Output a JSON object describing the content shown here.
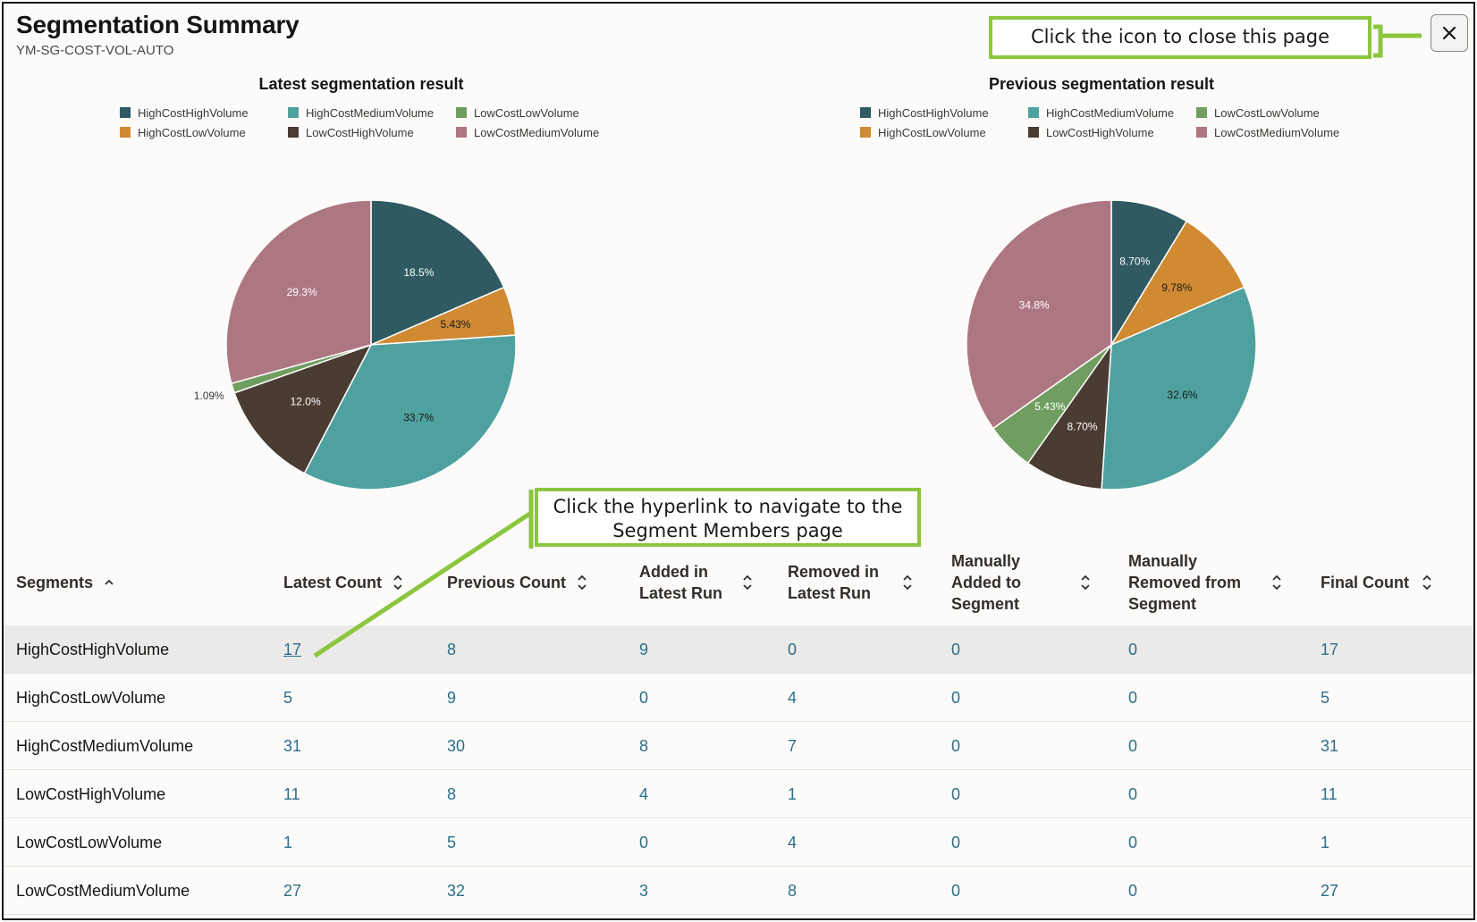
{
  "header": {
    "title": "Segmentation Summary",
    "subtitle": "YM-SG-COST-VOL-AUTO",
    "close_label": "close-icon"
  },
  "callouts": {
    "close": "Click the icon to close this page",
    "link_line1": "Click the hyperlink to navigate to the",
    "link_line2": "Segment Members page"
  },
  "colors": {
    "HighCostHighVolume": "#2f5a62",
    "HighCostLowVolume": "#d08a32",
    "HighCostMediumVolume": "#4fa19f",
    "LowCostHighVolume": "#4a3c33",
    "LowCostLowVolume": "#6f9e60",
    "LowCostMediumVolume": "#ad7782",
    "link": "#2c6e8a",
    "callout": "#8cc63f"
  },
  "legend": [
    "HighCostHighVolume",
    "HighCostMediumVolume",
    "LowCostLowVolume",
    "HighCostLowVolume",
    "LowCostHighVolume",
    "LowCostMediumVolume"
  ],
  "chart_data": [
    {
      "type": "pie",
      "title": "Latest segmentation result",
      "legend_position": "top",
      "slices": [
        {
          "name": "HighCostHighVolume",
          "value": 18.5,
          "label": "18.5%"
        },
        {
          "name": "HighCostLowVolume",
          "value": 5.43,
          "label": "5.43%"
        },
        {
          "name": "HighCostMediumVolume",
          "value": 33.7,
          "label": "33.7%"
        },
        {
          "name": "LowCostHighVolume",
          "value": 12.0,
          "label": "12.0%"
        },
        {
          "name": "LowCostLowVolume",
          "value": 1.09,
          "label": "1.09%"
        },
        {
          "name": "LowCostMediumVolume",
          "value": 29.3,
          "label": "29.3%"
        }
      ]
    },
    {
      "type": "pie",
      "title": "Previous segmentation result",
      "legend_position": "top",
      "slices": [
        {
          "name": "HighCostHighVolume",
          "value": 8.7,
          "label": "8.70%"
        },
        {
          "name": "HighCostLowVolume",
          "value": 9.78,
          "label": "9.78%"
        },
        {
          "name": "HighCostMediumVolume",
          "value": 32.6,
          "label": "32.6%"
        },
        {
          "name": "LowCostHighVolume",
          "value": 8.7,
          "label": "8.70%"
        },
        {
          "name": "LowCostLowVolume",
          "value": 5.43,
          "label": "5.43%"
        },
        {
          "name": "LowCostMediumVolume",
          "value": 34.8,
          "label": "34.8%"
        }
      ]
    }
  ],
  "table": {
    "columns": [
      {
        "label": "Segments",
        "sort": "asc"
      },
      {
        "label": "Latest Count",
        "sort": "both"
      },
      {
        "label": "Previous Count",
        "sort": "both"
      },
      {
        "label": "Added in\nLatest Run",
        "sort": "both"
      },
      {
        "label": "Removed in\nLatest Run",
        "sort": "both"
      },
      {
        "label": "Manually\nAdded to\nSegment",
        "sort": "both"
      },
      {
        "label": "Manually\nRemoved from\nSegment",
        "sort": "both"
      },
      {
        "label": "Final Count",
        "sort": "both"
      }
    ],
    "rows": [
      {
        "segment": "HighCostHighVolume",
        "values": [
          "17",
          "8",
          "9",
          "0",
          "0",
          "0",
          "17"
        ],
        "selected": true
      },
      {
        "segment": "HighCostLowVolume",
        "values": [
          "5",
          "9",
          "0",
          "4",
          "0",
          "0",
          "5"
        ],
        "selected": false
      },
      {
        "segment": "HighCostMediumVolume",
        "values": [
          "31",
          "30",
          "8",
          "7",
          "0",
          "0",
          "31"
        ],
        "selected": false
      },
      {
        "segment": "LowCostHighVolume",
        "values": [
          "11",
          "8",
          "4",
          "1",
          "0",
          "0",
          "11"
        ],
        "selected": false
      },
      {
        "segment": "LowCostLowVolume",
        "values": [
          "1",
          "5",
          "0",
          "4",
          "0",
          "0",
          "1"
        ],
        "selected": false
      },
      {
        "segment": "LowCostMediumVolume",
        "values": [
          "27",
          "32",
          "3",
          "8",
          "0",
          "0",
          "27"
        ],
        "selected": false
      }
    ]
  }
}
